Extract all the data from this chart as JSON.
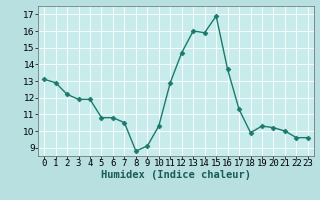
{
  "x": [
    0,
    1,
    2,
    3,
    4,
    5,
    6,
    7,
    8,
    9,
    10,
    11,
    12,
    13,
    14,
    15,
    16,
    17,
    18,
    19,
    20,
    21,
    22,
    23
  ],
  "y": [
    13.1,
    12.9,
    12.2,
    11.9,
    11.9,
    10.8,
    10.8,
    10.5,
    8.8,
    9.1,
    10.3,
    12.9,
    14.7,
    16.0,
    15.9,
    16.9,
    13.7,
    11.3,
    9.9,
    10.3,
    10.2,
    10.0,
    9.6,
    9.6
  ],
  "color": "#1a7a6e",
  "bg_color": "#b8e0e0",
  "plot_bg_color": "#c8ecec",
  "grid_color": "#d0d0d0",
  "xlabel": "Humidex (Indice chaleur)",
  "ylim": [
    8.5,
    17.5
  ],
  "yticks": [
    9,
    10,
    11,
    12,
    13,
    14,
    15,
    16,
    17
  ],
  "xticks": [
    0,
    1,
    2,
    3,
    4,
    5,
    6,
    7,
    8,
    9,
    10,
    11,
    12,
    13,
    14,
    15,
    16,
    17,
    18,
    19,
    20,
    21,
    22,
    23
  ],
  "xtick_labels": [
    "0",
    "1",
    "2",
    "3",
    "4",
    "5",
    "6",
    "7",
    "8",
    "9",
    "10",
    "11",
    "12",
    "13",
    "14",
    "15",
    "16",
    "17",
    "18",
    "19",
    "20",
    "21",
    "22",
    "23"
  ],
  "marker": "D",
  "marker_size": 2.5,
  "linewidth": 1.0,
  "tick_fontsize": 6.5,
  "xlabel_fontsize": 7.5
}
